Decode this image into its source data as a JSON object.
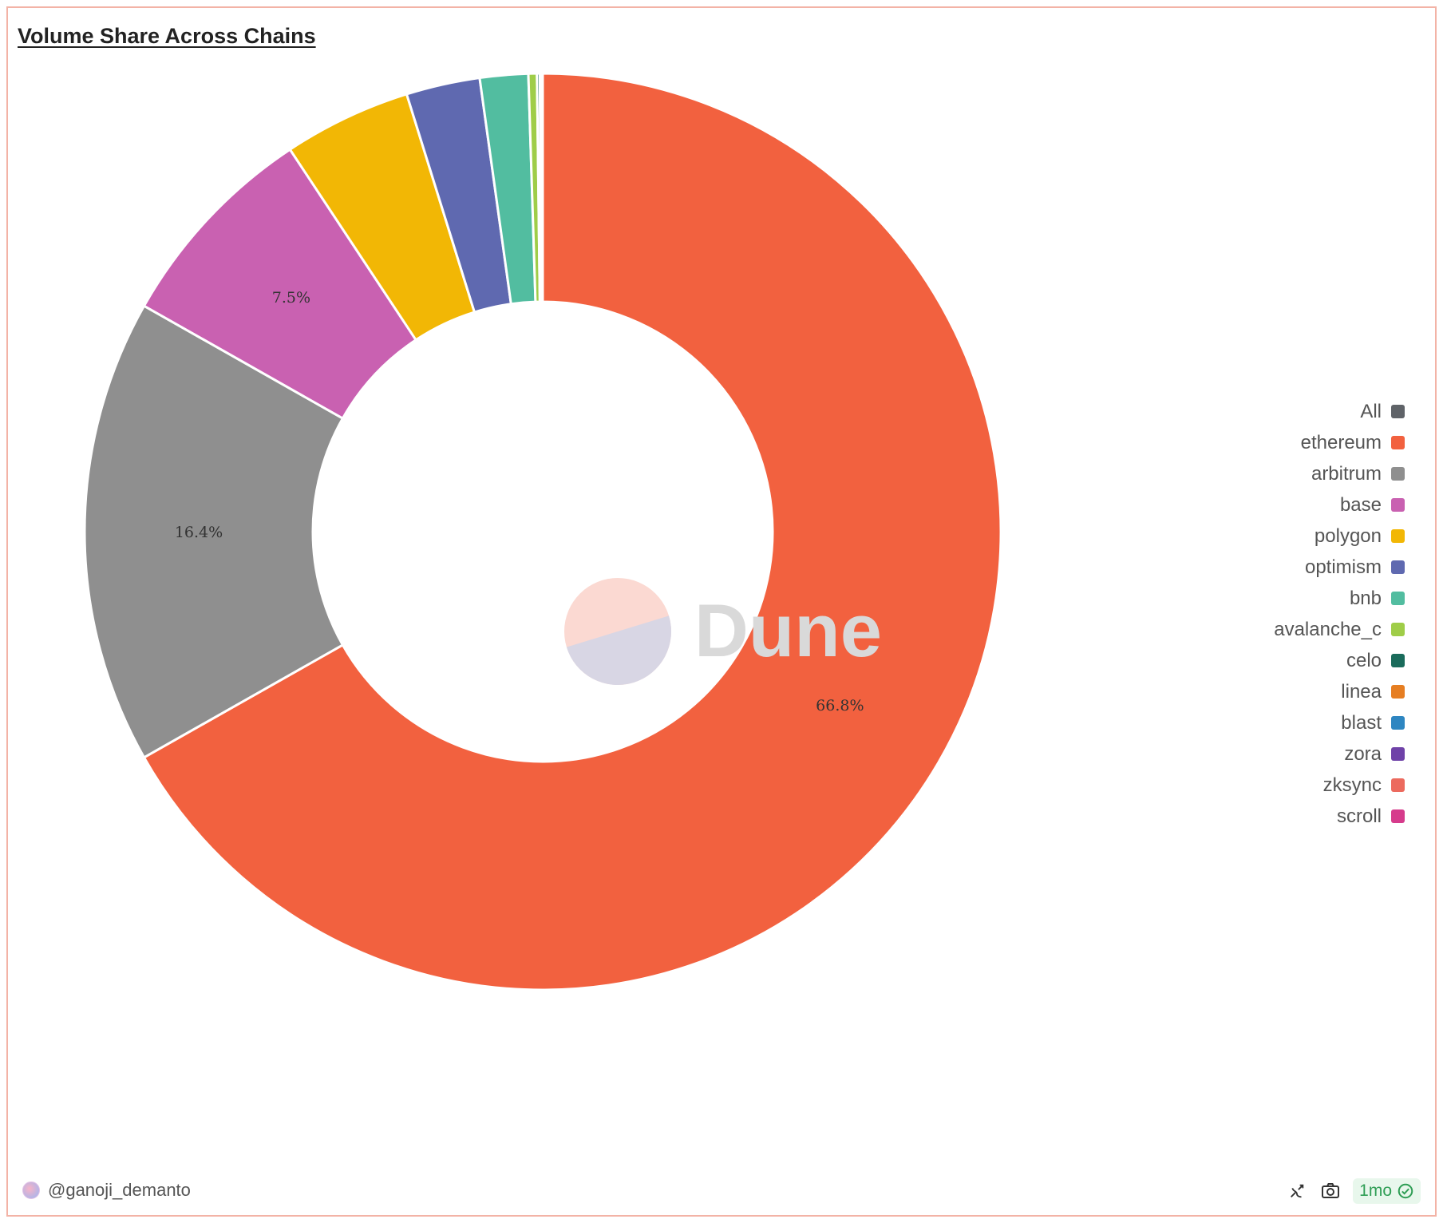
{
  "title": "Volume Share Across Chains",
  "watermark": "Dune",
  "author": "@ganoji_demanto",
  "freshness": "1mo",
  "colors": {
    "card_border": "#f3b3a6",
    "accent_green": "#2f9e55"
  },
  "chart_data": {
    "type": "pie",
    "variant": "donut",
    "legend_position": "right",
    "labels_shown": [
      "ethereum",
      "arbitrum",
      "base"
    ],
    "legend": [
      {
        "name": "All",
        "color": "#5f6368"
      },
      {
        "name": "ethereum",
        "color": "#f2613f"
      },
      {
        "name": "arbitrum",
        "color": "#8f8f8f"
      },
      {
        "name": "base",
        "color": "#c961b1"
      },
      {
        "name": "polygon",
        "color": "#f2b705"
      },
      {
        "name": "optimism",
        "color": "#5f69b0"
      },
      {
        "name": "bnb",
        "color": "#52bda0"
      },
      {
        "name": "avalanche_c",
        "color": "#9fcd48"
      },
      {
        "name": "celo",
        "color": "#1a6b5b"
      },
      {
        "name": "linea",
        "color": "#e67e22"
      },
      {
        "name": "blast",
        "color": "#2e86c1"
      },
      {
        "name": "zora",
        "color": "#6f42a8"
      },
      {
        "name": "zksync",
        "color": "#ec6a5e"
      },
      {
        "name": "scroll",
        "color": "#d63b8c"
      }
    ],
    "slices": [
      {
        "name": "ethereum",
        "value": 66.8,
        "label": "66.8%",
        "color": "#f2613f"
      },
      {
        "name": "arbitrum",
        "value": 16.4,
        "label": "16.4%",
        "color": "#8f8f8f"
      },
      {
        "name": "base",
        "value": 7.5,
        "label": "7.5%",
        "color": "#c961b1"
      },
      {
        "name": "polygon",
        "value": 4.5,
        "label": "",
        "color": "#f2b705"
      },
      {
        "name": "optimism",
        "value": 2.6,
        "label": "",
        "color": "#5f69b0"
      },
      {
        "name": "bnb",
        "value": 1.7,
        "label": "",
        "color": "#52bda0"
      },
      {
        "name": "avalanche_c",
        "value": 0.3,
        "label": "",
        "color": "#9fcd48"
      },
      {
        "name": "celo",
        "value": 0.1,
        "label": "",
        "color": "#1a6b5b"
      },
      {
        "name": "linea",
        "value": 0.05,
        "label": "",
        "color": "#e67e22"
      },
      {
        "name": "blast",
        "value": 0.02,
        "label": "",
        "color": "#2e86c1"
      },
      {
        "name": "zora",
        "value": 0.01,
        "label": "",
        "color": "#6f42a8"
      },
      {
        "name": "zksync",
        "value": 0.01,
        "label": "",
        "color": "#ec6a5e"
      },
      {
        "name": "scroll",
        "value": 0.01,
        "label": "",
        "color": "#d63b8c"
      }
    ]
  }
}
